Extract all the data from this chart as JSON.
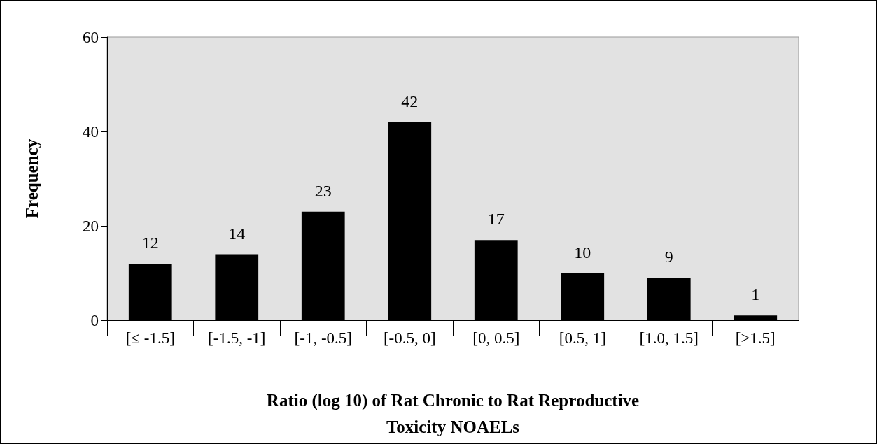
{
  "chart_data": {
    "type": "bar",
    "xlabel": "Ratio (log 10) of Rat Chronic to Rat Reproductive\nToxicity NOAELs",
    "ylabel": "Frequency",
    "categories": [
      "[≤ -1.5]",
      "[-1.5, -1]",
      "[-1, -0.5]",
      "[-0.5, 0]",
      "[0, 0.5]",
      "[0.5, 1]",
      "[1.0, 1.5]",
      "[>1.5]"
    ],
    "values": [
      12,
      14,
      23,
      42,
      17,
      10,
      9,
      1
    ],
    "color": "#000000",
    "ylim": [
      0,
      60
    ],
    "yticks": [
      0,
      20,
      40,
      60
    ],
    "grid": false,
    "data_labels": true
  }
}
